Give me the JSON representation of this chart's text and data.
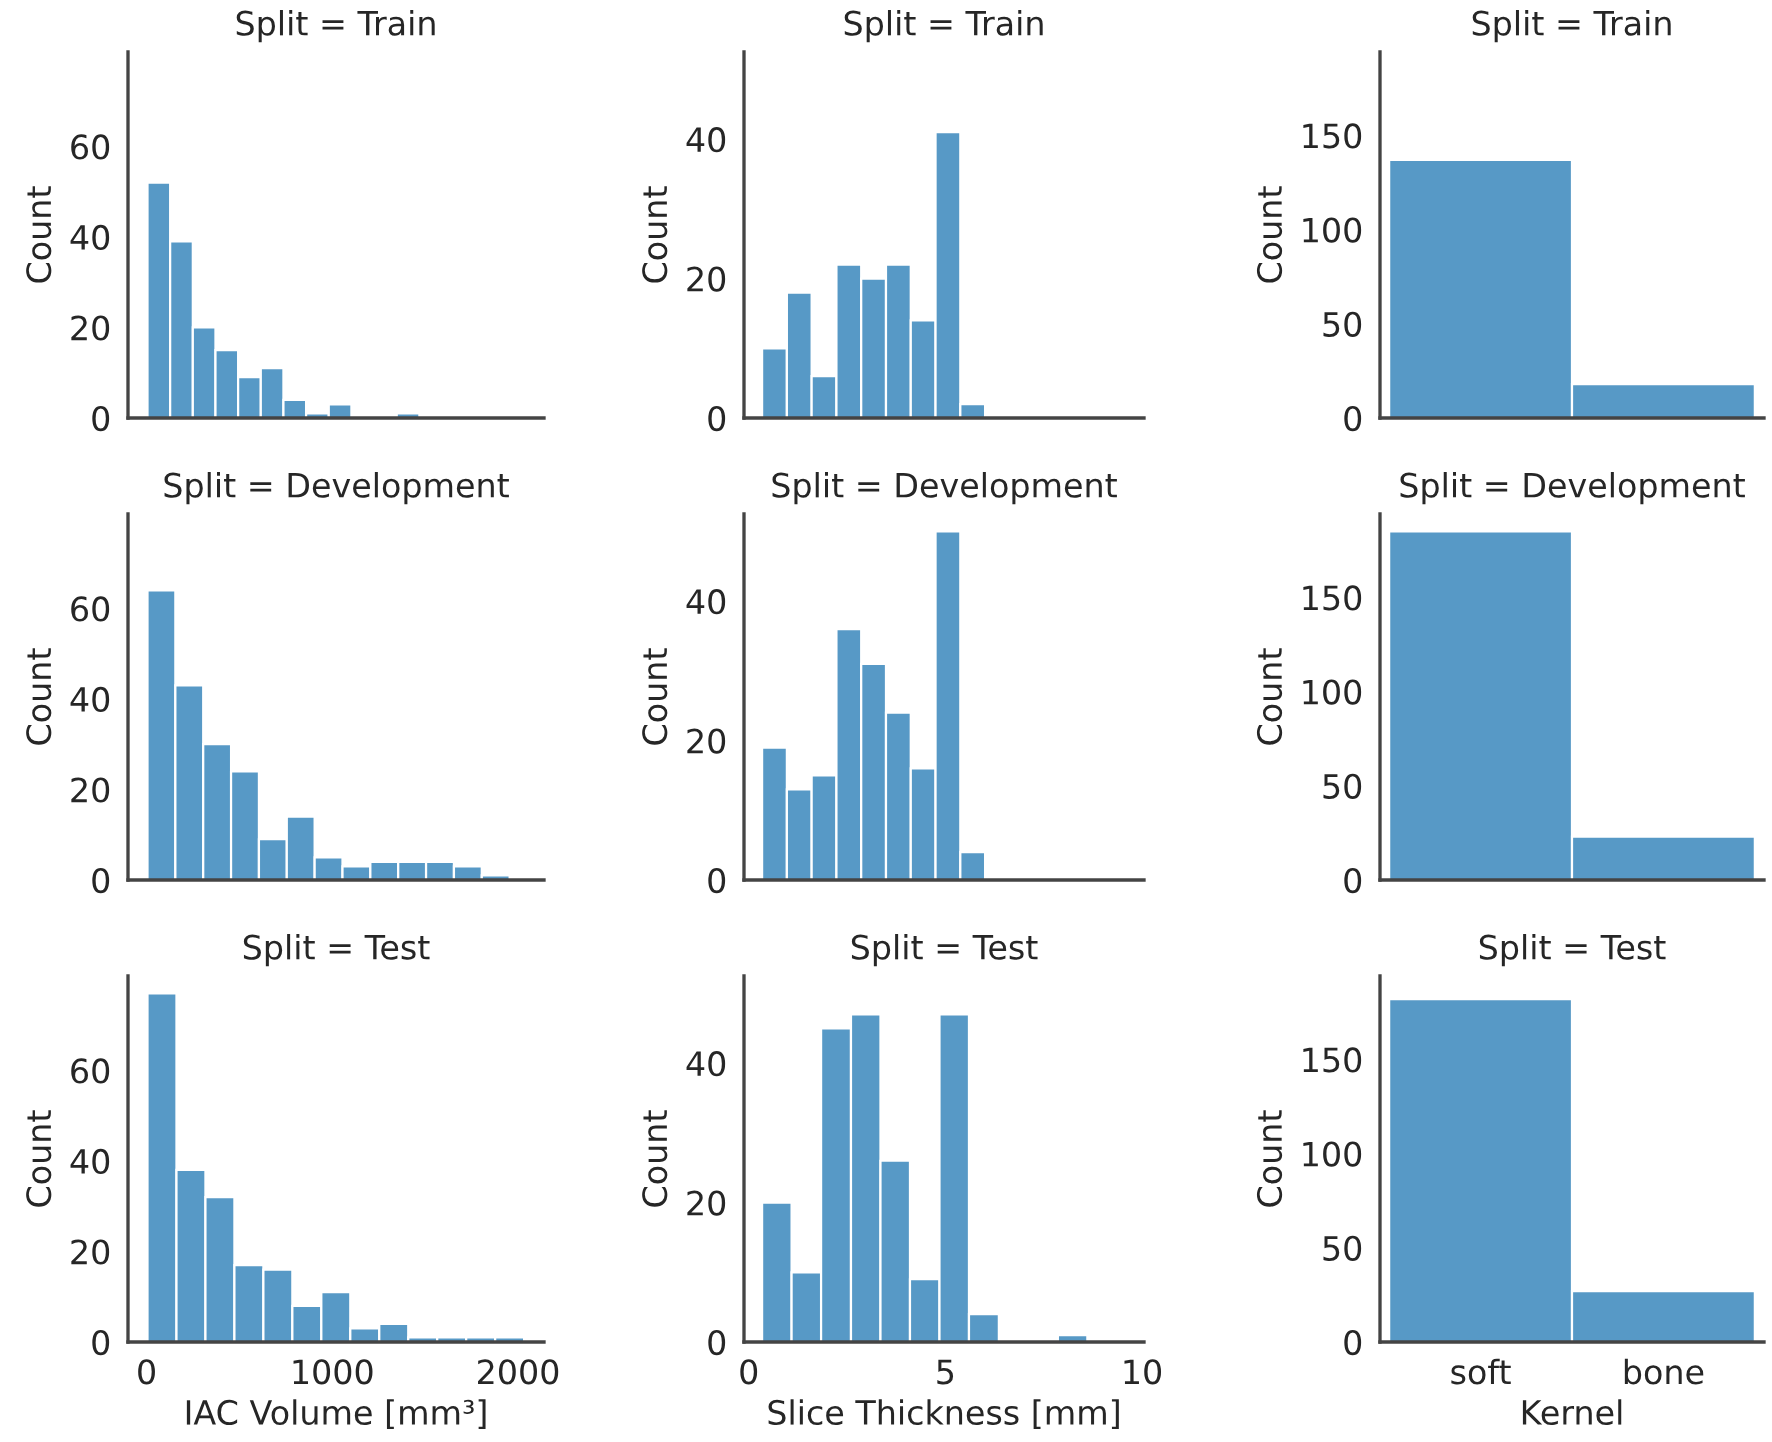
{
  "chart_data": [
    {
      "type": "histogram",
      "title": "Split = Train",
      "ylabel": "Count",
      "color": "#5799c6",
      "bins": [
        5,
        127,
        249,
        371,
        493,
        615,
        737,
        859,
        981,
        1103,
        1225,
        1347,
        1469
      ],
      "values": [
        52,
        39,
        20,
        15,
        9,
        11,
        4,
        1,
        3,
        0,
        0,
        1
      ],
      "xlim": [
        -100,
        2140
      ],
      "ylim": [
        0,
        80.85
      ],
      "yticks": [
        0,
        20,
        40,
        60
      ],
      "tick_labels": "y"
    },
    {
      "type": "histogram",
      "title": "Split = Train",
      "ylabel": "Count",
      "color": "#5799c6",
      "bins": [
        0.34,
        0.97,
        1.6,
        2.23,
        2.86,
        3.49,
        4.12,
        4.75,
        5.38,
        6.01
      ],
      "values": [
        10,
        18,
        6,
        22,
        20,
        22,
        14,
        41,
        2
      ],
      "xlim": [
        -0.12,
        10.05
      ],
      "ylim": [
        0,
        52.5
      ],
      "yticks": [
        0,
        20,
        40
      ],
      "tick_labels": "y"
    },
    {
      "type": "bar",
      "title": "Split = Train",
      "ylabel": "Count",
      "color": "#5799c6",
      "categories": [
        null,
        null
      ],
      "values": [
        137,
        18
      ],
      "ylim": [
        0,
        194.25
      ],
      "yticks": [
        0,
        50,
        100,
        150
      ],
      "tick_labels": "y"
    },
    {
      "type": "histogram",
      "title": "Split = Development",
      "ylabel": "Count",
      "color": "#5799c6",
      "bins": [
        5,
        155,
        305,
        455,
        605,
        755,
        905,
        1055,
        1205,
        1355,
        1505,
        1655,
        1805,
        1955
      ],
      "values": [
        64,
        43,
        30,
        24,
        9,
        14,
        5,
        3,
        4,
        4,
        4,
        3,
        1
      ],
      "xlim": [
        -100,
        2140
      ],
      "ylim": [
        0,
        80.85
      ],
      "yticks": [
        0,
        20,
        40,
        60
      ],
      "tick_labels": "y"
    },
    {
      "type": "histogram",
      "title": "Split = Development",
      "ylabel": "Count",
      "color": "#5799c6",
      "bins": [
        0.34,
        0.97,
        1.6,
        2.23,
        2.86,
        3.49,
        4.12,
        4.75,
        5.38,
        6.01
      ],
      "values": [
        19,
        13,
        15,
        36,
        31,
        24,
        16,
        50,
        4
      ],
      "xlim": [
        -0.12,
        10.05
      ],
      "ylim": [
        0,
        52.5
      ],
      "yticks": [
        0,
        20,
        40
      ],
      "tick_labels": "y"
    },
    {
      "type": "bar",
      "title": "Split = Development",
      "ylabel": "Count",
      "color": "#5799c6",
      "categories": [
        null,
        null
      ],
      "values": [
        185,
        23
      ],
      "ylim": [
        0,
        194.25
      ],
      "yticks": [
        0,
        50,
        100,
        150
      ],
      "tick_labels": "y"
    },
    {
      "type": "histogram",
      "title": "Split = Test",
      "ylabel": "Count",
      "xlabel": "IAC Volume [mm³]",
      "color": "#5799c6",
      "bins": [
        5,
        161,
        317,
        473,
        629,
        785,
        941,
        1097,
        1253,
        1409,
        1565,
        1721,
        1877,
        2033
      ],
      "values": [
        77,
        38,
        32,
        17,
        16,
        8,
        11,
        3,
        4,
        1,
        1,
        1,
        1
      ],
      "xlim": [
        -100,
        2140
      ],
      "xticks": [
        0,
        1000,
        2000
      ],
      "ylim": [
        0,
        80.85
      ],
      "yticks": [
        0,
        20,
        40,
        60
      ]
    },
    {
      "type": "histogram",
      "title": "Split = Test",
      "ylabel": "Count",
      "xlabel": "Slice Thickness [mm]",
      "color": "#5799c6",
      "bins": [
        0.34,
        1.09,
        1.84,
        2.6,
        3.35,
        4.1,
        4.85,
        5.6,
        6.36,
        7.11,
        7.86,
        8.61
      ],
      "values": [
        20,
        10,
        45,
        47,
        26,
        9,
        47,
        4,
        0,
        0,
        1
      ],
      "xlim": [
        -0.12,
        10.05
      ],
      "xticks": [
        0,
        5,
        10
      ],
      "ylim": [
        0,
        52.5
      ],
      "yticks": [
        0,
        20,
        40
      ]
    },
    {
      "type": "bar",
      "title": "Split = Test",
      "ylabel": "Count",
      "xlabel": "Kernel",
      "color": "#5799c6",
      "categories": [
        "soft",
        "bone"
      ],
      "values": [
        182,
        27
      ],
      "ylim": [
        0,
        194.25
      ],
      "yticks": [
        0,
        50,
        100,
        150
      ]
    }
  ]
}
